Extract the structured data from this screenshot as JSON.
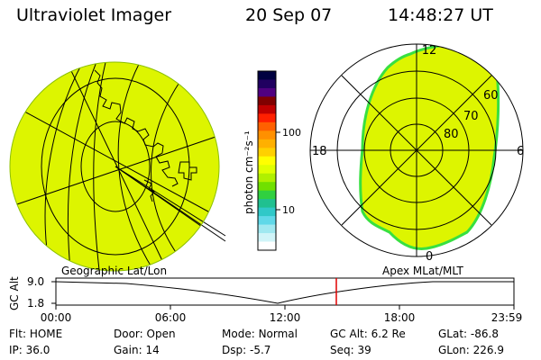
{
  "header": {
    "title": "Ultraviolet Imager",
    "date": "20 Sep 07",
    "time": "14:48:27 UT"
  },
  "colorbar": {
    "unit": "photon cm⁻²s⁻¹",
    "ticks": [
      "100",
      "10"
    ],
    "scale": "log",
    "colors": [
      "#000040",
      "#200060",
      "#500080",
      "#800000",
      "#c00000",
      "#ff2000",
      "#ff6000",
      "#ff9000",
      "#ffb000",
      "#ffd000",
      "#ffff00",
      "#e0ff00",
      "#b0f000",
      "#70e000",
      "#30d040",
      "#20c090",
      "#30c8c8",
      "#60d8e8",
      "#a0e8f0",
      "#d0f4f8",
      "#ffffff"
    ]
  },
  "left_map": {
    "label": "Geographic Lat/Lon",
    "fill_color": "#ddf500"
  },
  "right_map": {
    "label": "Apex MLat/MLT",
    "mlt_labels": {
      "top": "12",
      "left": "18",
      "right": "6",
      "bottom": "0"
    },
    "lat_labels": [
      "60",
      "70",
      "80"
    ],
    "fill_color": "#ddf500",
    "edge_color": "#38e040"
  },
  "timeline": {
    "ylabel": "GC Alt",
    "yticks": [
      "9.0",
      "1.8"
    ],
    "xticks": [
      "00:00",
      "06:00",
      "12:00",
      "18:00",
      "23:59"
    ],
    "marker_color": "#e00000"
  },
  "status": [
    [
      {
        "k": "Flt:",
        "v": "HOME"
      },
      {
        "k": "Door:",
        "v": "Open"
      },
      {
        "k": "Mode:",
        "v": "Normal"
      },
      {
        "k": "GC Alt:",
        "v": "6.2 Re"
      },
      {
        "k": "GLat:",
        "v": "-86.8"
      }
    ],
    [
      {
        "k": "IP:",
        "v": "36.0"
      },
      {
        "k": "Gain:",
        "v": "14"
      },
      {
        "k": "Dsp:",
        "v": "-5.7"
      },
      {
        "k": "Seq:",
        "v": "39"
      },
      {
        "k": "GLon:",
        "v": "226.9"
      }
    ]
  ]
}
